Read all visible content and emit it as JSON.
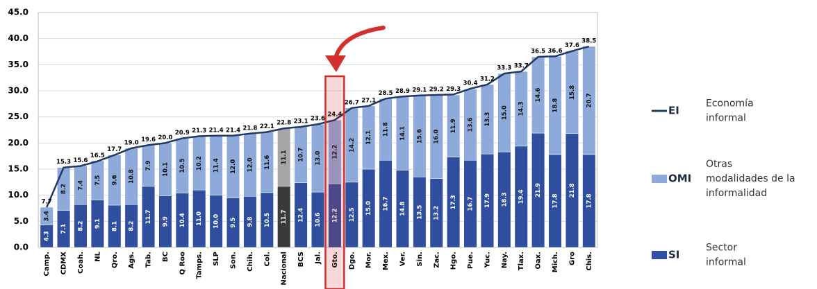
{
  "chart_data": {
    "type": "stacked-bar-line",
    "categories": [
      "Camp.",
      "CDMX",
      "Coah.",
      "NL",
      "Qro.",
      "Ags.",
      "Tab.",
      "BC",
      "Q Roo",
      "Tamps.",
      "SLP",
      "Son.",
      "Chih.",
      "Col.",
      "Nacional",
      "BCS",
      "Jal.",
      "Gto.",
      "Dgo.",
      "Mor.",
      "Mex.",
      "Ver.",
      "Sin.",
      "Zac.",
      "Hgo.",
      "Pue.",
      "Yuc.",
      "Nay.",
      "Tlax.",
      "Oax.",
      "Mich.",
      "Gro",
      "Chis."
    ],
    "series": [
      {
        "name": "SI",
        "description": [
          "Sector",
          "informal"
        ],
        "kind": "bar",
        "color": "#2f4f9e",
        "highlight_color": "#3a3a3a",
        "label_color": "#ffffff",
        "values": [
          4.3,
          7.1,
          8.2,
          9.1,
          8.1,
          8.2,
          11.7,
          9.9,
          10.4,
          11.0,
          10.0,
          9.5,
          9.8,
          10.5,
          11.7,
          12.4,
          10.6,
          12.2,
          12.5,
          15.0,
          16.7,
          14.8,
          13.5,
          13.2,
          17.3,
          16.7,
          17.9,
          18.3,
          19.4,
          21.9,
          17.8,
          21.8,
          17.8
        ],
        "value_labels": [
          "4.3",
          "7.1",
          "8.2",
          "9.1",
          "8.1",
          "8.2",
          "11.7",
          "9.9",
          "10.4",
          "11.0",
          "10.0",
          "9.5",
          "9.8",
          "10.5",
          "11.7",
          "12.4",
          "10.6",
          "12.2",
          "12.5",
          "15.0",
          "16.7",
          "14.8",
          "13.5",
          "13.2",
          "17.3",
          "16.7",
          "17.9",
          "18.3",
          "19.4",
          "21.9",
          "17.8",
          "21.8",
          "17.8"
        ]
      },
      {
        "name": "OMI",
        "description": [
          "Otras",
          "modalidades de la",
          "informalidad"
        ],
        "kind": "bar",
        "color": "#8eaadb",
        "highlight_color": "#a6a6a6",
        "label_color": "#111111",
        "values": [
          3.4,
          8.2,
          7.4,
          7.5,
          9.6,
          10.8,
          7.9,
          10.1,
          10.5,
          10.2,
          11.4,
          12.0,
          12.0,
          11.6,
          11.1,
          10.7,
          13.0,
          12.2,
          14.2,
          12.1,
          11.8,
          14.1,
          15.6,
          16.0,
          11.9,
          13.6,
          13.3,
          15.0,
          14.3,
          14.6,
          18.8,
          15.8,
          20.7
        ],
        "value_labels": [
          "3.4",
          "8.2",
          "7.4",
          "7.5",
          "9.6",
          "10.8",
          "7.9",
          "10.1",
          "10.5",
          "10.2",
          "11.4",
          "12.0",
          "12.0",
          "11.6",
          "11.1",
          "10.7",
          "13.0",
          "12.2",
          "14.2",
          "12.1",
          "11.8",
          "14.1",
          "15.6",
          "16.0",
          "11.9",
          "13.6",
          "13.3",
          "15.0",
          "14.3",
          "14.6",
          "18.8",
          "15.8",
          "20.7"
        ]
      },
      {
        "name": "EI",
        "description": [
          "Economía",
          "informal"
        ],
        "kind": "line",
        "color": "#1f3864",
        "values": [
          7.7,
          15.3,
          15.6,
          16.5,
          17.7,
          19.0,
          19.6,
          20.0,
          20.9,
          21.3,
          21.4,
          21.4,
          21.8,
          22.1,
          22.8,
          23.1,
          23.6,
          24.4,
          26.7,
          27.1,
          28.5,
          28.9,
          29.1,
          29.2,
          29.3,
          30.4,
          31.2,
          33.3,
          33.7,
          36.5,
          36.6,
          37.6,
          38.5
        ],
        "value_labels": [
          "7.7",
          "15.3",
          "15.6",
          "16.5",
          "17.7",
          "19.0",
          "19.6",
          "20.0",
          "20.9",
          "21.3",
          "21.4",
          "21.4",
          "21.8",
          "22.1",
          "22.8",
          "23.1",
          "23.6",
          "24.4",
          "26.7",
          "27.1",
          "28.5",
          "28.9",
          "29.1",
          "29.2",
          "29.3",
          "30.4",
          "31.2",
          "33.3",
          "33.7",
          "36.5",
          "36.6",
          "37.6",
          "38.5"
        ]
      }
    ],
    "highlight_index": 14,
    "callout_index": 17,
    "callout_color": "#d32f2f",
    "ylim": [
      0,
      45
    ],
    "yticks": [
      {
        "value": 0,
        "label": "0.0"
      },
      {
        "value": 5,
        "label": "5.0"
      },
      {
        "value": 10,
        "label": "10.0"
      },
      {
        "value": 15,
        "label": "15.0"
      },
      {
        "value": 20,
        "label": "20.0"
      },
      {
        "value": 25,
        "label": "25.0"
      },
      {
        "value": 30,
        "label": "30.0"
      },
      {
        "value": 35,
        "label": "35.0"
      },
      {
        "value": 40,
        "label": "40.0"
      },
      {
        "value": 45,
        "label": "45.0"
      }
    ],
    "grid": true
  }
}
